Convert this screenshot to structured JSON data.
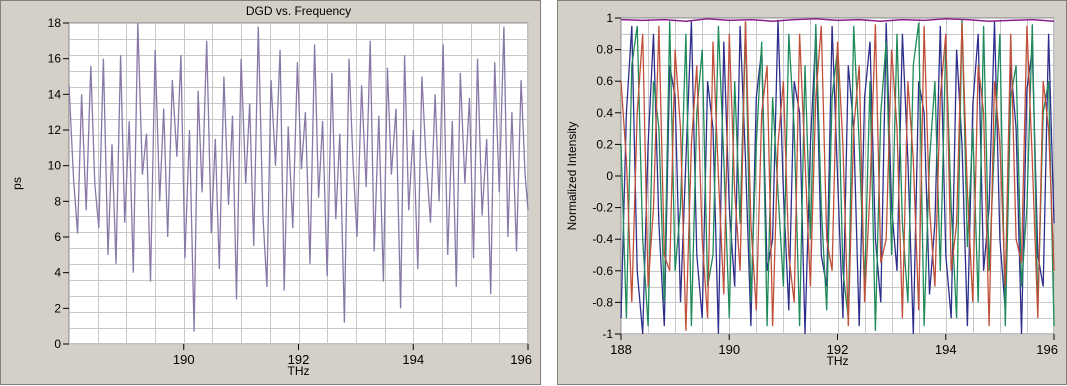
{
  "chart_data": [
    {
      "type": "line",
      "title": "DGD vs. Frequency",
      "xlabel": "THz",
      "ylabel": "ps",
      "xlim": [
        188,
        196
      ],
      "ylim": [
        0,
        18
      ],
      "x_ticks": [
        "190",
        "192",
        "194",
        "196"
      ],
      "x_tick_values": [
        190,
        192,
        194,
        196
      ],
      "y_ticks": [
        "0",
        "2",
        "4",
        "6",
        "8",
        "10",
        "12",
        "14",
        "16",
        "18"
      ],
      "y_tick_values": [
        0,
        2,
        4,
        6,
        8,
        10,
        12,
        14,
        16,
        18
      ],
      "grid": true,
      "series": [
        {
          "color": "#8878a8",
          "x": [
            188.0,
            188.08,
            188.15,
            188.22,
            188.3,
            188.38,
            188.45,
            188.52,
            188.6,
            188.68,
            188.75,
            188.82,
            188.9,
            188.97,
            189.05,
            189.12,
            189.2,
            189.28,
            189.35,
            189.42,
            189.5,
            189.58,
            189.65,
            189.72,
            189.8,
            189.88,
            189.95,
            190.02,
            190.1,
            190.18,
            190.25,
            190.32,
            190.4,
            190.48,
            190.55,
            190.62,
            190.7,
            190.78,
            190.85,
            190.92,
            191.0,
            191.08,
            191.15,
            191.22,
            191.3,
            191.38,
            191.45,
            191.52,
            191.6,
            191.68,
            191.75,
            191.82,
            191.9,
            191.98,
            192.05,
            192.12,
            192.2,
            192.28,
            192.35,
            192.42,
            192.5,
            192.58,
            192.65,
            192.72,
            192.8,
            192.88,
            192.95,
            193.02,
            193.1,
            193.18,
            193.25,
            193.32,
            193.4,
            193.48,
            193.55,
            193.62,
            193.7,
            193.78,
            193.85,
            193.92,
            194.0,
            194.08,
            194.15,
            194.22,
            194.3,
            194.38,
            194.45,
            194.52,
            194.6,
            194.68,
            194.75,
            194.82,
            194.9,
            194.98,
            195.05,
            195.12,
            195.2,
            195.28,
            195.35,
            195.42,
            195.5,
            195.58,
            195.65,
            195.72,
            195.8,
            195.88,
            195.95,
            196.0
          ],
          "values": [
            14.5,
            9.2,
            6.2,
            14.0,
            7.5,
            15.6,
            9.0,
            6.5,
            16.0,
            5.0,
            11.2,
            4.5,
            16.2,
            6.8,
            12.5,
            4.0,
            18.0,
            9.5,
            11.8,
            3.5,
            16.5,
            8.0,
            13.2,
            6.0,
            14.8,
            10.5,
            16.2,
            4.8,
            12.0,
            0.7,
            14.2,
            8.5,
            17.0,
            6.2,
            11.5,
            4.2,
            15.0,
            7.8,
            12.8,
            2.5,
            16.0,
            9.0,
            13.5,
            5.5,
            17.8,
            7.2,
            3.2,
            14.8,
            10.0,
            16.5,
            3.0,
            12.2,
            6.5,
            15.8,
            9.8,
            13.0,
            4.5,
            16.8,
            8.2,
            12.5,
            3.8,
            15.2,
            7.0,
            11.8,
            1.2,
            16.0,
            10.2,
            6.0,
            14.5,
            8.8,
            17.0,
            5.2,
            12.8,
            3.5,
            15.5,
            9.5,
            13.2,
            2.0,
            16.2,
            7.5,
            12.0,
            4.2,
            15.0,
            10.5,
            6.8,
            14.0,
            8.0,
            16.8,
            5.0,
            12.5,
            3.2,
            15.2,
            9.0,
            13.8,
            4.8,
            16.0,
            7.2,
            11.5,
            2.8,
            15.8,
            8.5,
            17.8,
            6.0,
            13.0,
            5.2,
            14.8,
            9.5,
            7.5
          ]
        }
      ]
    },
    {
      "type": "line",
      "title": "",
      "xlabel": "THz",
      "ylabel": "Normalized Intensity",
      "xlim": [
        188,
        196
      ],
      "ylim": [
        -1,
        1
      ],
      "x_ticks": [
        "188",
        "190",
        "192",
        "194",
        "196"
      ],
      "x_tick_values": [
        188,
        190,
        192,
        194,
        196
      ],
      "y_ticks": [
        "-1",
        "-0.8",
        "-0.6",
        "-0.4",
        "-0.2",
        "0",
        "0.2",
        "0.4",
        "0.6",
        "0.8",
        "1"
      ],
      "y_tick_values": [
        -1,
        -0.8,
        -0.6,
        -0.4,
        -0.2,
        0,
        0.2,
        0.4,
        0.6,
        0.8,
        1
      ],
      "grid": true,
      "series": [
        {
          "color": "#2e2e8c",
          "x": [
            188.0,
            188.1,
            188.2,
            188.3,
            188.4,
            188.5,
            188.6,
            188.7,
            188.8,
            188.9,
            189.0,
            189.1,
            189.2,
            189.3,
            189.4,
            189.5,
            189.6,
            189.7,
            189.8,
            189.9,
            190.0,
            190.1,
            190.2,
            190.3,
            190.4,
            190.5,
            190.6,
            190.7,
            190.8,
            190.9,
            191.0,
            191.1,
            191.2,
            191.3,
            191.4,
            191.5,
            191.6,
            191.7,
            191.8,
            191.9,
            192.0,
            192.1,
            192.2,
            192.3,
            192.4,
            192.5,
            192.6,
            192.7,
            192.8,
            192.9,
            193.0,
            193.1,
            193.2,
            193.3,
            193.4,
            193.5,
            193.6,
            193.7,
            193.8,
            193.9,
            194.0,
            194.1,
            194.2,
            194.3,
            194.4,
            194.5,
            194.6,
            194.7,
            194.8,
            194.9,
            195.0,
            195.1,
            195.2,
            195.3,
            195.4,
            195.5,
            195.6,
            195.7,
            195.8,
            195.9,
            196.0
          ],
          "values": [
            -0.9,
            0.4,
            0.95,
            -0.6,
            -1.0,
            0.2,
            0.9,
            -0.3,
            -0.95,
            0.7,
            0.5,
            -0.8,
            0.1,
            0.98,
            -0.5,
            -0.9,
            0.6,
            0.3,
            -1.0,
            0.85,
            -0.2,
            -0.7,
            0.95,
            0.1,
            -0.95,
            0.5,
            0.8,
            -0.6,
            -0.4,
            0.99,
            -0.1,
            -0.85,
            0.6,
            0.4,
            -1.0,
            0.2,
            0.9,
            -0.5,
            -0.7,
            0.95,
            0.0,
            -0.9,
            0.7,
            0.3,
            -0.95,
            0.5,
            0.85,
            -0.4,
            -0.8,
            0.97,
            -0.2,
            -0.6,
            0.9,
            0.1,
            -1.0,
            0.6,
            0.4,
            -0.75,
            -0.3,
            0.95,
            -0.5,
            -0.9,
            0.8,
            0.2,
            -0.95,
            0.45,
            0.9,
            -0.6,
            -0.2,
            0.98,
            -0.4,
            -0.85,
            0.7,
            0.3,
            -1.0,
            0.55,
            0.8,
            -0.5,
            -0.7,
            0.9,
            -0.3
          ]
        },
        {
          "color": "#1f8a5a",
          "x": [
            188.0,
            188.1,
            188.2,
            188.3,
            188.4,
            188.5,
            188.6,
            188.7,
            188.8,
            188.9,
            189.0,
            189.1,
            189.2,
            189.3,
            189.4,
            189.5,
            189.6,
            189.7,
            189.8,
            189.9,
            190.0,
            190.1,
            190.2,
            190.3,
            190.4,
            190.5,
            190.6,
            190.7,
            190.8,
            190.9,
            191.0,
            191.1,
            191.2,
            191.3,
            191.4,
            191.5,
            191.6,
            191.7,
            191.8,
            191.9,
            192.0,
            192.1,
            192.2,
            192.3,
            192.4,
            192.5,
            192.6,
            192.7,
            192.8,
            192.9,
            193.0,
            193.1,
            193.2,
            193.3,
            193.4,
            193.5,
            193.6,
            193.7,
            193.8,
            193.9,
            194.0,
            194.1,
            194.2,
            194.3,
            194.4,
            194.5,
            194.6,
            194.7,
            194.8,
            194.9,
            195.0,
            195.1,
            195.2,
            195.3,
            195.4,
            195.5,
            195.6,
            195.7,
            195.8,
            195.9,
            196.0
          ],
          "values": [
            0.2,
            -0.9,
            0.7,
            0.95,
            -0.4,
            -0.95,
            0.6,
            0.3,
            -0.8,
            0.98,
            -0.6,
            -0.2,
            0.9,
            -0.95,
            0.4,
            0.8,
            -0.7,
            -0.5,
            0.95,
            0.1,
            -0.9,
            0.6,
            -0.3,
            0.97,
            -0.8,
            0.2,
            0.85,
            -0.95,
            0.5,
            -0.1,
            -0.7,
            0.9,
            0.3,
            -0.95,
            0.7,
            -0.4,
            0.96,
            -0.2,
            -0.85,
            0.5,
            0.8,
            -0.6,
            -0.9,
            0.95,
            0.2,
            -0.7,
            0.6,
            -0.98,
            0.4,
            0.85,
            -0.5,
            0.9,
            -0.3,
            -0.8,
            0.7,
            0.97,
            -0.95,
            0.1,
            0.6,
            -0.6,
            0.85,
            -0.2,
            -0.9,
            0.99,
            -0.45,
            0.3,
            -0.8,
            0.95,
            -0.6,
            0.2,
            0.9,
            -0.95,
            0.5,
            0.7,
            -0.7,
            -0.2,
            0.96,
            -0.85,
            0.4,
            0.6,
            -0.95
          ]
        },
        {
          "color": "#c0503a",
          "x": [
            188.0,
            188.1,
            188.2,
            188.3,
            188.4,
            188.5,
            188.6,
            188.7,
            188.8,
            188.9,
            189.0,
            189.1,
            189.2,
            189.3,
            189.4,
            189.5,
            189.6,
            189.7,
            189.8,
            189.9,
            190.0,
            190.1,
            190.2,
            190.3,
            190.4,
            190.5,
            190.6,
            190.7,
            190.8,
            190.9,
            191.0,
            191.1,
            191.2,
            191.3,
            191.4,
            191.5,
            191.6,
            191.7,
            191.8,
            191.9,
            192.0,
            192.1,
            192.2,
            192.3,
            192.4,
            192.5,
            192.6,
            192.7,
            192.8,
            192.9,
            193.0,
            193.1,
            193.2,
            193.3,
            193.4,
            193.5,
            193.6,
            193.7,
            193.8,
            193.9,
            194.0,
            194.1,
            194.2,
            194.3,
            194.4,
            194.5,
            194.6,
            194.7,
            194.8,
            194.9,
            195.0,
            195.1,
            195.2,
            195.3,
            195.4,
            195.5,
            195.6,
            195.7,
            195.8,
            195.9,
            196.0
          ],
          "values": [
            0.6,
            0.1,
            -0.8,
            0.4,
            0.9,
            -0.7,
            -0.2,
            0.95,
            -0.5,
            -0.6,
            0.8,
            0.3,
            -0.98,
            0.2,
            0.7,
            -0.4,
            -0.9,
            0.85,
            0.0,
            -0.75,
            0.9,
            -0.1,
            -0.6,
            0.98,
            -0.3,
            -0.85,
            0.4,
            0.7,
            -0.95,
            0.2,
            0.6,
            -0.5,
            -0.8,
            0.9,
            0.1,
            -0.7,
            0.5,
            0.95,
            -0.4,
            -0.6,
            0.85,
            0.2,
            -0.95,
            0.3,
            0.7,
            -0.8,
            -0.1,
            0.96,
            -0.55,
            -0.4,
            0.8,
            0.3,
            -0.9,
            0.6,
            0.1,
            -0.85,
            0.95,
            -0.2,
            -0.7,
            0.5,
            0.9,
            -0.6,
            -0.3,
            0.97,
            -0.1,
            -0.8,
            0.7,
            0.4,
            -0.95,
            0.6,
            0.2,
            -0.7,
            0.9,
            -0.4,
            -0.55,
            0.95,
            0.1,
            -0.9,
            0.6,
            0.3,
            -0.6
          ]
        },
        {
          "color": "#8a1e8a",
          "x": [
            188.0,
            188.4,
            188.8,
            189.2,
            189.6,
            190.0,
            190.4,
            190.8,
            191.2,
            191.6,
            192.0,
            192.4,
            192.8,
            193.2,
            193.6,
            194.0,
            194.4,
            194.8,
            195.2,
            195.6,
            196.0
          ],
          "values": [
            0.99,
            0.985,
            0.99,
            0.98,
            0.995,
            0.985,
            0.99,
            0.98,
            0.99,
            0.995,
            0.985,
            0.99,
            0.98,
            0.99,
            0.985,
            0.995,
            0.99,
            0.98,
            0.985,
            0.99,
            0.98
          ]
        }
      ]
    }
  ]
}
